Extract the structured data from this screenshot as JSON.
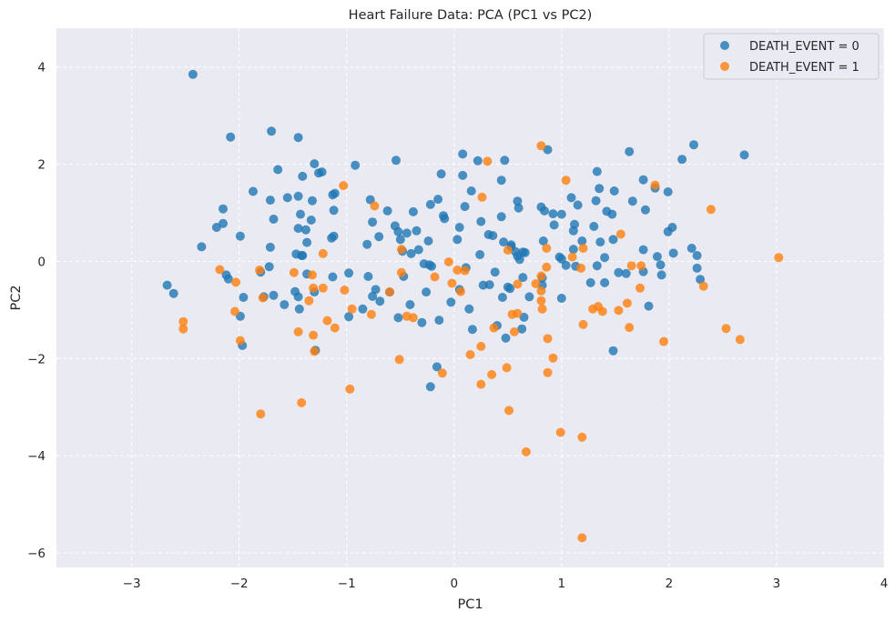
{
  "chart_data": {
    "type": "scatter",
    "title": "Heart Failure Data: PCA (PC1 vs PC2)",
    "xlabel": "PC1",
    "ylabel": "PC2",
    "xlim": [
      -3.7,
      4.0
    ],
    "ylim": [
      -6.3,
      4.8
    ],
    "x_ticks": [
      -3,
      -2,
      -1,
      0,
      1,
      2,
      3,
      4
    ],
    "y_ticks": [
      -6,
      -4,
      -2,
      0,
      2,
      4
    ],
    "x_tick_labels": [
      "−3",
      "−2",
      "−1",
      "0",
      "1",
      "2",
      "3",
      "4"
    ],
    "y_tick_labels": [
      "−6",
      "−4",
      "−2",
      "0",
      "2",
      "4"
    ],
    "grid": true,
    "legend_position": "top-right",
    "colors": {
      "background": "#eaeaf2",
      "grid": "#ffffff",
      "series0": "#1f77b4",
      "series1": "#ff7f0e"
    },
    "series": [
      {
        "name": "DEATH_EVENT = 0",
        "points": [
          [
            -2.43,
            3.85
          ],
          [
            -2.08,
            2.56
          ],
          [
            -1.7,
            2.68
          ],
          [
            -1.45,
            2.55
          ],
          [
            -1.3,
            2.01
          ],
          [
            -1.23,
            1.84
          ],
          [
            -0.92,
            1.98
          ],
          [
            -0.54,
            2.08
          ],
          [
            0.08,
            2.21
          ],
          [
            0.22,
            2.07
          ],
          [
            0.47,
            2.08
          ],
          [
            0.87,
            2.3
          ],
          [
            1.63,
            2.26
          ],
          [
            2.23,
            2.4
          ],
          [
            2.7,
            2.19
          ],
          [
            2.12,
            2.1
          ],
          [
            -1.64,
            1.89
          ],
          [
            -1.41,
            1.75
          ],
          [
            -1.26,
            1.82
          ],
          [
            -1.13,
            1.37
          ],
          [
            -0.12,
            1.8
          ],
          [
            0.08,
            1.77
          ],
          [
            0.44,
            1.67
          ],
          [
            1.33,
            1.85
          ],
          [
            1.76,
            1.68
          ],
          [
            1.87,
            1.51
          ],
          [
            1.35,
            1.5
          ],
          [
            1.49,
            1.45
          ],
          [
            1.99,
            1.43
          ],
          [
            -1.87,
            1.44
          ],
          [
            -1.55,
            1.31
          ],
          [
            -1.45,
            1.34
          ],
          [
            -1.32,
            1.25
          ],
          [
            -1.11,
            1.4
          ],
          [
            -0.78,
            1.27
          ],
          [
            -0.22,
            1.17
          ],
          [
            -0.15,
            1.28
          ],
          [
            0.16,
            1.45
          ],
          [
            0.59,
            1.24
          ],
          [
            0.81,
            1.12
          ],
          [
            0.92,
            0.98
          ],
          [
            1.09,
            1.31
          ],
          [
            1.15,
            1.16
          ],
          [
            1.32,
            1.25
          ],
          [
            1.42,
            1.03
          ],
          [
            1.66,
            1.24
          ],
          [
            1.78,
            1.06
          ],
          [
            -2.15,
            1.08
          ],
          [
            -1.71,
            1.26
          ],
          [
            -1.43,
            0.97
          ],
          [
            -1.33,
            0.85
          ],
          [
            -1.12,
            1.05
          ],
          [
            -0.76,
            0.81
          ],
          [
            -0.62,
            1.04
          ],
          [
            -0.38,
            1.02
          ],
          [
            -0.1,
            0.94
          ],
          [
            0.1,
            1.13
          ],
          [
            0.25,
            0.82
          ],
          [
            0.44,
            0.92
          ],
          [
            0.6,
            1.1
          ],
          [
            0.84,
            1.04
          ],
          [
            1.0,
            0.97
          ],
          [
            1.12,
            0.76
          ],
          [
            1.47,
            0.97
          ],
          [
            -2.21,
            0.7
          ],
          [
            -2.15,
            0.78
          ],
          [
            -1.99,
            0.52
          ],
          [
            -1.68,
            0.87
          ],
          [
            -1.45,
            0.68
          ],
          [
            -1.38,
            0.65
          ],
          [
            -1.37,
            0.39
          ],
          [
            -1.14,
            0.48
          ],
          [
            -0.81,
            0.35
          ],
          [
            -0.7,
            0.51
          ],
          [
            -0.55,
            0.73
          ],
          [
            -0.52,
            0.61
          ],
          [
            -0.44,
            0.58
          ],
          [
            -0.35,
            0.63
          ],
          [
            -0.33,
            0.24
          ],
          [
            -0.24,
            0.42
          ],
          [
            -0.09,
            0.88
          ],
          [
            0.05,
            0.7
          ],
          [
            0.32,
            0.55
          ],
          [
            0.36,
            0.53
          ],
          [
            0.46,
            0.4
          ],
          [
            0.53,
            0.3
          ],
          [
            0.57,
            0.2
          ],
          [
            0.64,
            0.19
          ],
          [
            0.83,
            0.42
          ],
          [
            0.93,
            0.75
          ],
          [
            1.11,
            0.63
          ],
          [
            1.19,
            0.42
          ],
          [
            1.3,
            0.72
          ],
          [
            1.36,
            0.4
          ],
          [
            1.48,
            0.45
          ],
          [
            1.76,
            0.24
          ],
          [
            1.99,
            0.61
          ],
          [
            2.03,
            0.7
          ],
          [
            -2.35,
            0.3
          ],
          [
            -1.71,
            0.29
          ],
          [
            -1.47,
            0.15
          ],
          [
            -1.41,
            0.12
          ],
          [
            -1.12,
            0.52
          ],
          [
            -0.5,
            0.45
          ],
          [
            -0.48,
            0.21
          ],
          [
            -0.4,
            0.16
          ],
          [
            0.03,
            0.45
          ],
          [
            0.24,
            0.14
          ],
          [
            0.53,
            0.34
          ],
          [
            0.59,
            0.11
          ],
          [
            0.61,
            0.04
          ],
          [
            0.66,
            0.18
          ],
          [
            0.98,
            0.09
          ],
          [
            1.0,
            0.05
          ],
          [
            1.11,
            0.25
          ],
          [
            1.13,
            -0.1
          ],
          [
            1.4,
            0.08
          ],
          [
            1.6,
            -0.25
          ],
          [
            1.89,
            0.1
          ],
          [
            2.04,
            0.17
          ],
          [
            2.21,
            0.27
          ],
          [
            2.26,
            0.12
          ],
          [
            -2.12,
            -0.28
          ],
          [
            -2.1,
            -0.36
          ],
          [
            -1.8,
            -0.22
          ],
          [
            -1.72,
            -0.11
          ],
          [
            -1.42,
            0.12
          ],
          [
            -1.37,
            -0.26
          ],
          [
            -1.13,
            -0.32
          ],
          [
            -0.98,
            -0.24
          ],
          [
            -0.8,
            -0.31
          ],
          [
            -0.47,
            -0.31
          ],
          [
            -0.28,
            -0.05
          ],
          [
            -0.23,
            -0.07
          ],
          [
            -0.21,
            -0.1
          ],
          [
            0.11,
            -0.13
          ],
          [
            0.38,
            -0.22
          ],
          [
            0.64,
            -0.33
          ],
          [
            0.82,
            -0.34
          ],
          [
            1.04,
            -0.08
          ],
          [
            1.33,
            -0.09
          ],
          [
            1.4,
            -0.44
          ],
          [
            1.53,
            -0.23
          ],
          [
            1.76,
            -0.21
          ],
          [
            1.92,
            -0.07
          ],
          [
            1.93,
            -0.28
          ],
          [
            2.26,
            -0.14
          ],
          [
            2.29,
            -0.37
          ],
          [
            -2.67,
            -0.49
          ],
          [
            -2.61,
            -0.66
          ],
          [
            -1.96,
            -0.74
          ],
          [
            -1.77,
            -0.73
          ],
          [
            -1.68,
            -0.7
          ],
          [
            -1.58,
            -0.89
          ],
          [
            -1.48,
            -0.62
          ],
          [
            -1.45,
            -0.73
          ],
          [
            -1.44,
            -0.98
          ],
          [
            -1.3,
            -0.63
          ],
          [
            -0.98,
            -1.14
          ],
          [
            -0.85,
            -0.98
          ],
          [
            -0.76,
            -0.72
          ],
          [
            -0.69,
            -0.82
          ],
          [
            -0.6,
            -0.63
          ],
          [
            -0.41,
            -0.89
          ],
          [
            -0.26,
            -0.63
          ],
          [
            0.05,
            -0.58
          ],
          [
            0.27,
            -0.49
          ],
          [
            0.33,
            -0.48
          ],
          [
            0.5,
            -0.53
          ],
          [
            0.7,
            -0.73
          ],
          [
            0.82,
            -0.49
          ],
          [
            1.0,
            -0.76
          ],
          [
            1.27,
            -0.44
          ],
          [
            1.81,
            -0.92
          ],
          [
            -1.99,
            -1.13
          ],
          [
            -1.97,
            -1.73
          ],
          [
            -0.73,
            -0.58
          ],
          [
            -0.52,
            -1.16
          ],
          [
            -0.3,
            -1.26
          ],
          [
            -0.14,
            -1.21
          ],
          [
            -0.03,
            -0.84
          ],
          [
            0.14,
            -0.98
          ],
          [
            0.17,
            -1.4
          ],
          [
            0.4,
            -1.32
          ],
          [
            0.45,
            -0.74
          ],
          [
            0.48,
            -1.58
          ],
          [
            0.52,
            -0.56
          ],
          [
            0.63,
            -1.39
          ],
          [
            0.65,
            -1.15
          ],
          [
            1.48,
            -1.84
          ],
          [
            -1.29,
            -1.83
          ],
          [
            -0.22,
            -2.58
          ],
          [
            -0.16,
            -2.17
          ]
        ]
      },
      {
        "name": "DEATH_EVENT = 1",
        "points": [
          [
            0.81,
            2.38
          ],
          [
            0.31,
            2.06
          ],
          [
            1.04,
            1.67
          ],
          [
            1.87,
            1.57
          ],
          [
            -1.03,
            1.56
          ],
          [
            0.26,
            1.32
          ],
          [
            -0.74,
            1.14
          ],
          [
            2.39,
            1.07
          ],
          [
            1.55,
            0.56
          ],
          [
            0.5,
            0.23
          ],
          [
            -0.49,
            0.25
          ],
          [
            0.86,
            0.27
          ],
          [
            1.2,
            0.27
          ],
          [
            -1.22,
            0.16
          ],
          [
            3.02,
            0.08
          ],
          [
            1.1,
            0.09
          ],
          [
            1.65,
            -0.09
          ],
          [
            1.74,
            -0.09
          ],
          [
            1.18,
            -0.14
          ],
          [
            0.86,
            -0.12
          ],
          [
            -0.05,
            -0.01
          ],
          [
            -2.18,
            -0.17
          ],
          [
            -1.81,
            -0.18
          ],
          [
            -1.49,
            -0.23
          ],
          [
            -1.32,
            -0.28
          ],
          [
            -0.49,
            -0.23
          ],
          [
            -0.18,
            -0.32
          ],
          [
            0.03,
            -0.18
          ],
          [
            0.1,
            -0.19
          ],
          [
            0.81,
            -0.3
          ],
          [
            2.32,
            -0.51
          ],
          [
            1.73,
            -0.55
          ],
          [
            0.76,
            -0.46
          ],
          [
            -0.02,
            -0.45
          ],
          [
            0.06,
            -0.62
          ],
          [
            -2.03,
            -0.43
          ],
          [
            -1.78,
            -0.75
          ],
          [
            -1.31,
            -0.55
          ],
          [
            -1.22,
            -0.55
          ],
          [
            -1.02,
            -0.59
          ],
          [
            -0.6,
            -0.63
          ],
          [
            -1.35,
            -0.81
          ],
          [
            0.81,
            -0.61
          ],
          [
            0.81,
            -0.81
          ],
          [
            1.61,
            -0.86
          ],
          [
            1.29,
            -0.98
          ],
          [
            1.34,
            -0.93
          ],
          [
            1.38,
            -1.03
          ],
          [
            0.59,
            -0.47
          ],
          [
            1.53,
            -1.01
          ],
          [
            0.82,
            -0.98
          ],
          [
            -2.04,
            -1.03
          ],
          [
            -1.18,
            -1.22
          ],
          [
            -0.95,
            -0.98
          ],
          [
            -0.77,
            -1.09
          ],
          [
            -0.44,
            -1.13
          ],
          [
            -0.38,
            -1.16
          ],
          [
            0.54,
            -1.09
          ],
          [
            0.59,
            -1.07
          ],
          [
            1.2,
            -1.3
          ],
          [
            1.63,
            -1.36
          ],
          [
            0.87,
            -1.59
          ],
          [
            2.53,
            -1.38
          ],
          [
            2.66,
            -1.61
          ],
          [
            1.95,
            -1.65
          ],
          [
            0.37,
            -1.37
          ],
          [
            0.56,
            -1.45
          ],
          [
            -2.52,
            -1.24
          ],
          [
            -2.52,
            -1.39
          ],
          [
            -1.99,
            -1.63
          ],
          [
            -1.31,
            -1.52
          ],
          [
            -1.45,
            -1.45
          ],
          [
            -1.11,
            -1.37
          ],
          [
            -1.3,
            -1.85
          ],
          [
            0.15,
            -1.92
          ],
          [
            0.25,
            -1.75
          ],
          [
            0.92,
            -1.99
          ],
          [
            -0.51,
            -2.02
          ],
          [
            0.49,
            -2.19
          ],
          [
            0.35,
            -2.33
          ],
          [
            0.87,
            -2.29
          ],
          [
            -0.11,
            -2.3
          ],
          [
            0.25,
            -2.53
          ],
          [
            -0.97,
            -2.63
          ],
          [
            -1.42,
            -2.91
          ],
          [
            -1.8,
            -3.14
          ],
          [
            0.51,
            -3.07
          ],
          [
            0.99,
            -3.52
          ],
          [
            1.19,
            -3.62
          ],
          [
            0.67,
            -3.92
          ],
          [
            1.19,
            -5.69
          ]
        ]
      }
    ]
  }
}
